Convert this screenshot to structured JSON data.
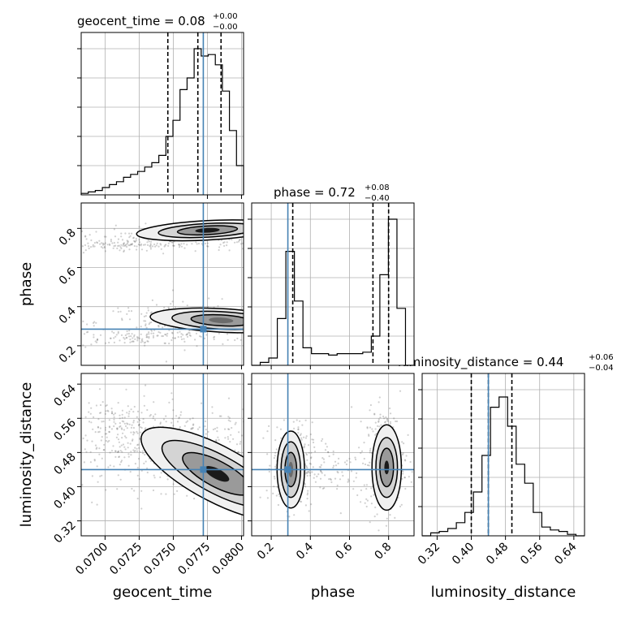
{
  "chart_data": {
    "type": "corner",
    "parameters": [
      "geocent_time",
      "phase",
      "luminosity_distance"
    ],
    "truths": {
      "geocent_time": 0.0772,
      "phase": 0.285,
      "luminosity_distance": 0.44
    },
    "ranges": {
      "geocent_time": [
        0.06825,
        0.08015
      ],
      "phase": [
        0.1,
        0.93
      ],
      "luminosity_distance": [
        0.285,
        0.665
      ]
    },
    "grid": true,
    "colors": {
      "truth": "#4682b4",
      "line": "#000000",
      "scatter": "#555555"
    },
    "panels": {
      "geocent_time": {
        "title": {
          "name": "geocent_time",
          "value": "0.08",
          "plus": "+0.00",
          "minus": "−0.00"
        },
        "quantiles": [
          0.0746,
          0.0768,
          0.0785
        ],
        "xticks": [
          0.07,
          0.0725,
          0.075,
          0.0775,
          0.08
        ],
        "xticklabels": [
          "0.0700",
          "0.0725",
          "0.0750",
          "0.0775",
          "0.0800"
        ],
        "xlabel": "geocent_time",
        "hist": [
          0.01,
          0.02,
          0.03,
          0.05,
          0.07,
          0.09,
          0.12,
          0.14,
          0.16,
          0.19,
          0.22,
          0.27,
          0.4,
          0.51,
          0.72,
          0.8,
          1.0,
          0.95,
          0.96,
          0.89,
          0.71,
          0.44,
          0.2
        ]
      },
      "phase": {
        "title": {
          "name": "phase",
          "value": "0.72",
          "plus": "+0.08",
          "minus": "−0.40"
        },
        "quantiles": [
          0.31,
          0.72,
          0.8
        ],
        "xticks": [
          0.2,
          0.4,
          0.6,
          0.8
        ],
        "xticklabels": [
          "0.2",
          "0.4",
          "0.6",
          "0.8"
        ],
        "yticklabels": [
          "0.2",
          "0.4",
          "0.6",
          "0.8"
        ],
        "xlabel": "phase",
        "ylabel": "phase",
        "hist": [
          0.0,
          0.02,
          0.05,
          0.32,
          0.78,
          0.44,
          0.12,
          0.08,
          0.08,
          0.07,
          0.08,
          0.08,
          0.08,
          0.09,
          0.2,
          0.62,
          1.0,
          0.39,
          0.0
        ]
      },
      "luminosity_distance": {
        "title": {
          "name": "luminosity_distance",
          "value": "0.44",
          "plus": "+0.06",
          "minus": "−0.04"
        },
        "quantiles": [
          0.4,
          0.44,
          0.495
        ],
        "xticks": [
          0.32,
          0.4,
          0.48,
          0.56,
          0.64
        ],
        "xticklabels": [
          "0.32",
          "0.40",
          "0.48",
          "0.56",
          "0.64"
        ],
        "yticklabels": [
          "0.32",
          "0.40",
          "0.48",
          "0.56",
          "0.64"
        ],
        "xlabel": "luminosity_distance",
        "ylabel": "luminosity_distance",
        "hist": [
          0.0,
          0.02,
          0.03,
          0.05,
          0.09,
          0.16,
          0.3,
          0.55,
          0.88,
          0.95,
          0.75,
          0.49,
          0.36,
          0.16,
          0.06,
          0.04,
          0.03,
          0.01,
          0.0
        ]
      }
    }
  }
}
